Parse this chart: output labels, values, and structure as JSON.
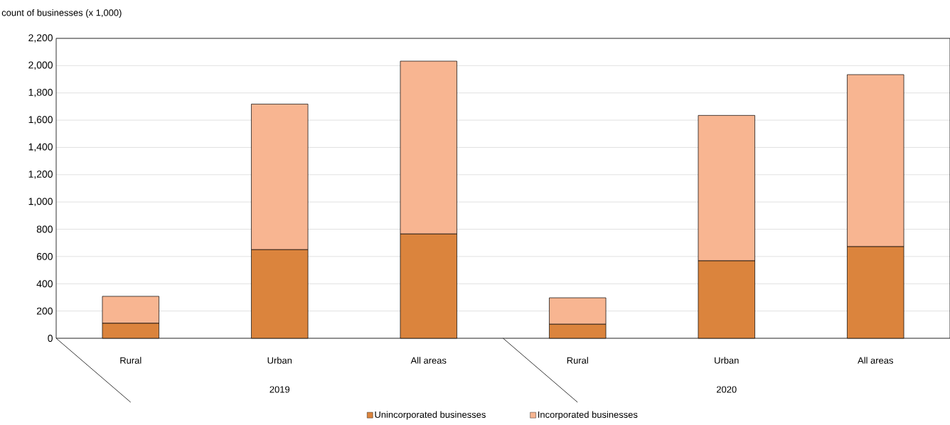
{
  "chart_data": {
    "type": "bar",
    "stacked": true,
    "ylabel": "count of businesses (x 1,000)",
    "categories": [
      "Rural",
      "Urban",
      "All areas",
      "Rural",
      "Urban",
      "All areas"
    ],
    "annotations": [
      "2019",
      "2020"
    ],
    "series": [
      {
        "name": "Unincorporated businesses",
        "color": "#db843d",
        "values": [
          110,
          650,
          765,
          103,
          568,
          672
        ]
      },
      {
        "name": "Incorporated businesses",
        "color": "#f8b591",
        "values": [
          198,
          1068,
          1268,
          194,
          1067,
          1262
        ]
      }
    ],
    "ylim": [
      0,
      2200
    ],
    "yticks": [
      0,
      200,
      400,
      600,
      800,
      {
        "value": 1000,
        "label": "1,000"
      },
      {
        "value": 1200,
        "label": "1,200"
      },
      {
        "value": 1400,
        "label": "1,400"
      },
      {
        "value": 1600,
        "label": "1,600"
      },
      {
        "value": 1800,
        "label": "1,800"
      },
      {
        "value": 2000,
        "label": "2,000"
      },
      {
        "value": 2200,
        "label": "2,200"
      }
    ],
    "grid": "y",
    "legend": "bottom"
  }
}
